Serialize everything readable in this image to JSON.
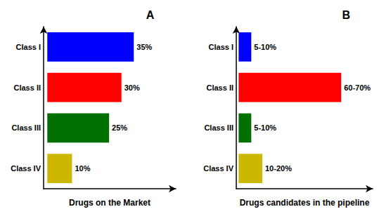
{
  "chart_data": [
    {
      "type": "bar",
      "title": "A",
      "xlabel": "Drugs on the Market",
      "categories": [
        "Class I",
        "Class II",
        "Class III",
        "Class IV"
      ],
      "values": [
        35,
        30,
        25,
        10
      ],
      "value_labels": [
        "35%",
        "30%",
        "25%",
        "10%"
      ],
      "colors": [
        "#0000FF",
        "#FF0000",
        "#007000",
        "#CCB800"
      ],
      "xlim": [
        -1.5,
        52
      ],
      "orientation": "horizontal",
      "data_labels": true,
      "tick_labels": "y",
      "grid": false
    },
    {
      "type": "bar",
      "title": "B",
      "xlabel": "Drugs candidates in the pipeline",
      "categories": [
        "Class I",
        "Class II",
        "Class III",
        "Class IV"
      ],
      "values": [
        8,
        65,
        8,
        15
      ],
      "value_labels": [
        "5-10%",
        "60-70%",
        "5-10%",
        "10-20%"
      ],
      "colors": [
        "#0000FF",
        "#FF0000",
        "#007000",
        "#CCB800"
      ],
      "xlim": [
        -1.5,
        85
      ],
      "orientation": "horizontal",
      "data_labels": true,
      "tick_labels": "y",
      "grid": false
    }
  ]
}
